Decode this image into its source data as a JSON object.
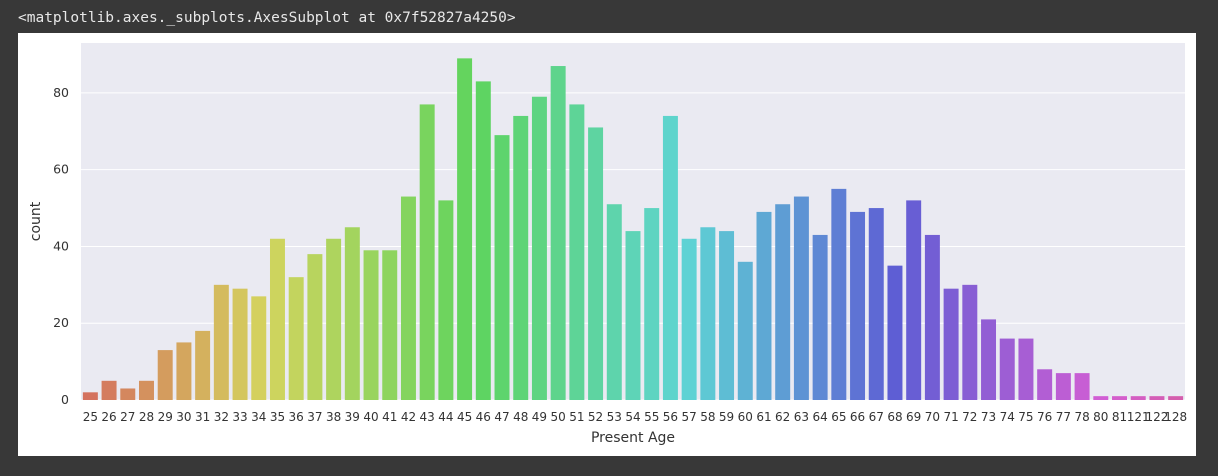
{
  "output": {
    "repr_text": "<matplotlib.axes._subplots.AxesSubplot at 0x7f52827a4250>"
  },
  "chart_data": {
    "type": "bar",
    "xlabel": "Present Age",
    "ylabel": "count",
    "ylim": [
      0,
      93
    ],
    "yticks": [
      0,
      20,
      40,
      60,
      80
    ],
    "grid": true,
    "plot_background": "#eaeaf2",
    "categories": [
      "25",
      "26",
      "27",
      "28",
      "29",
      "30",
      "31",
      "32",
      "33",
      "34",
      "35",
      "36",
      "37",
      "38",
      "39",
      "40",
      "41",
      "42",
      "43",
      "44",
      "45",
      "46",
      "47",
      "48",
      "49",
      "50",
      "51",
      "52",
      "53",
      "54",
      "55",
      "56",
      "57",
      "58",
      "59",
      "60",
      "61",
      "62",
      "63",
      "64",
      "65",
      "66",
      "67",
      "68",
      "69",
      "70",
      "71",
      "72",
      "73",
      "74",
      "75",
      "76",
      "77",
      "78",
      "80",
      "81",
      "121",
      "122",
      "128"
    ],
    "values": [
      2,
      5,
      3,
      5,
      13,
      15,
      18,
      30,
      29,
      27,
      42,
      32,
      38,
      42,
      45,
      39,
      39,
      53,
      77,
      52,
      89,
      83,
      69,
      74,
      79,
      87,
      77,
      71,
      51,
      44,
      50,
      74,
      42,
      45,
      44,
      36,
      49,
      51,
      53,
      43,
      55,
      49,
      50,
      35,
      52,
      43,
      29,
      30,
      21,
      16,
      16,
      8,
      7,
      7,
      1,
      1,
      1,
      1,
      1
    ]
  }
}
